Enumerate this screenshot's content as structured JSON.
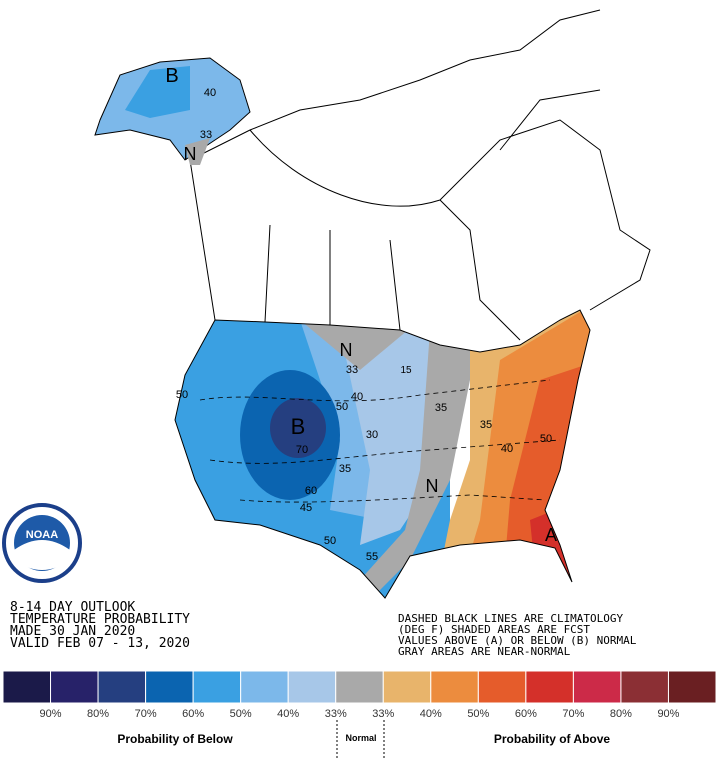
{
  "header": {
    "lines": [
      "8-14 DAY OUTLOOK",
      "TEMPERATURE PROBABILITY",
      "MADE  30 JAN 2020",
      "VALID  FEB 07 - 13, 2020"
    ]
  },
  "notes": [
    "DASHED BLACK LINES ARE CLIMATOLOGY",
    "(DEG F) SHADED AREAS ARE FCST",
    "VALUES ABOVE (A) OR BELOW (B) NORMAL",
    "GRAY AREAS ARE NEAR-NORMAL"
  ],
  "logo": "NOAA",
  "map_labels": [
    "B",
    "40",
    "33",
    "N",
    "50",
    "B",
    "70",
    "60",
    "45",
    "50",
    "55",
    "35",
    "30",
    "50",
    "40",
    "N",
    "33",
    "15",
    "35",
    "N",
    "35",
    "40",
    "50",
    "A"
  ],
  "legend": {
    "colors": [
      "#1b1a49",
      "#272269",
      "#253f80",
      "#0b64b0",
      "#3aa0e2",
      "#7cb8ea",
      "#a7c7e8",
      "#a9a9a9",
      "#e8b46b",
      "#ec8c3e",
      "#e55c2b",
      "#d4302a",
      "#cc2a48",
      "#8b2f34",
      "#6a1f22"
    ],
    "tick_labels": [
      "90%",
      "80%",
      "70%",
      "60%",
      "50%",
      "40%",
      "33%",
      "33%",
      "40%",
      "50%",
      "60%",
      "70%",
      "80%",
      "90%"
    ],
    "below": "Probability of Below",
    "normal": "Normal",
    "above": "Probability of Above"
  }
}
